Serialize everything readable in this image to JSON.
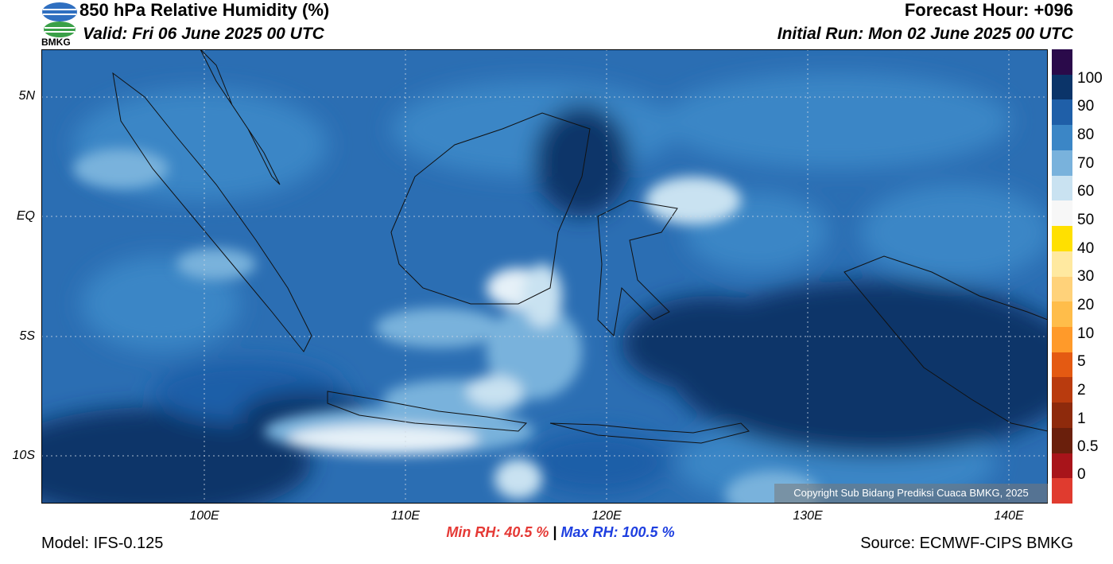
{
  "header": {
    "title": "850 hPa Relative Humidity (%)",
    "valid": "Valid: Fri 06 June 2025 00 UTC",
    "forecast_hour": "Forecast Hour: +096",
    "initial_run": "Initial Run: Mon 02 June 2025 00 UTC",
    "logo_text": "BMKG"
  },
  "footer": {
    "model": "Model: IFS-0.125",
    "source": "Source: ECMWF-CIPS BMKG",
    "min_rh": "Min RH:  40.5 %",
    "separator": "|",
    "max_rh": "Max RH: 100.5 %",
    "copyright": "Copyright Sub Bidang Prediksi Cuaca BMKG, 2025"
  },
  "axes": {
    "lat_ticks": [
      "5N",
      "EQ",
      "5S",
      "10S"
    ],
    "lon_ticks": [
      "100E",
      "110E",
      "120E",
      "130E",
      "140E"
    ]
  },
  "legend": {
    "labels": [
      "100",
      "90",
      "80",
      "70",
      "60",
      "50",
      "40",
      "30",
      "20",
      "10",
      "5",
      "2",
      "1",
      "0.5",
      "0"
    ],
    "colors": [
      "#2a0a4a",
      "#0b3469",
      "#1f5fa8",
      "#3b86c6",
      "#79b2dc",
      "#c9e2f1",
      "#f7f7f7",
      "#ffe000",
      "#ffe9a0",
      "#ffd27a",
      "#ffbd4a",
      "#ff9a2a",
      "#e45a12",
      "#b93b0e",
      "#8e2a0c",
      "#6a1f0c",
      "#a8141a",
      "#e03b2f"
    ]
  },
  "colors": {
    "min_rh": "#e53935",
    "max_rh": "#1e3fe0",
    "deep_blue": "#0b3469",
    "light": "#e6f1f8"
  }
}
